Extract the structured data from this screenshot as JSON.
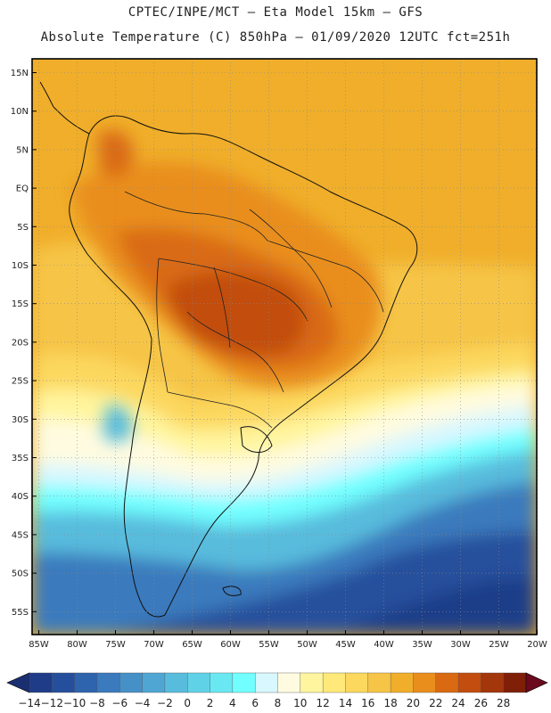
{
  "header": {
    "line1": "CPTEC/INPE/MCT –  Eta Model 15km – GFS",
    "line2": "Absolute Temperature (C) 850hPa – 01/09/2020 12UTC fct=251h"
  },
  "map": {
    "lat_labels": [
      "15N",
      "10N",
      "5N",
      "EQ",
      "5S",
      "10S",
      "15S",
      "20S",
      "25S",
      "30S",
      "35S",
      "40S",
      "45S",
      "50S",
      "55S"
    ],
    "lon_labels": [
      "85W",
      "80W",
      "75W",
      "70W",
      "65W",
      "60W",
      "55W",
      "50W",
      "45W",
      "40W",
      "35W",
      "30W",
      "25W",
      "20W"
    ]
  },
  "colorbar": {
    "labels": [
      "-14",
      "-12",
      "-10",
      "-8",
      "-6",
      "-4",
      "-2",
      "0",
      "2",
      "4",
      "6",
      "8",
      "10",
      "12",
      "14",
      "16",
      "18",
      "20",
      "22",
      "24",
      "26",
      "28"
    ],
    "colors": [
      "#1f3c88",
      "#254f9c",
      "#2e63ad",
      "#3a7abd",
      "#4590c7",
      "#4fa6d2",
      "#58bcdd",
      "#60d2e8",
      "#69e8f2",
      "#72ffff",
      "#d8f7ff",
      "#fffbe0",
      "#fff59e",
      "#ffe97a",
      "#fcd85e",
      "#f6c547",
      "#f0ae2a",
      "#e98e1d",
      "#d96a12",
      "#c24d0e",
      "#a3360b",
      "#7f1f08"
    ],
    "under_color": "#1a2f72",
    "over_color": "#6b0a1e"
  }
}
